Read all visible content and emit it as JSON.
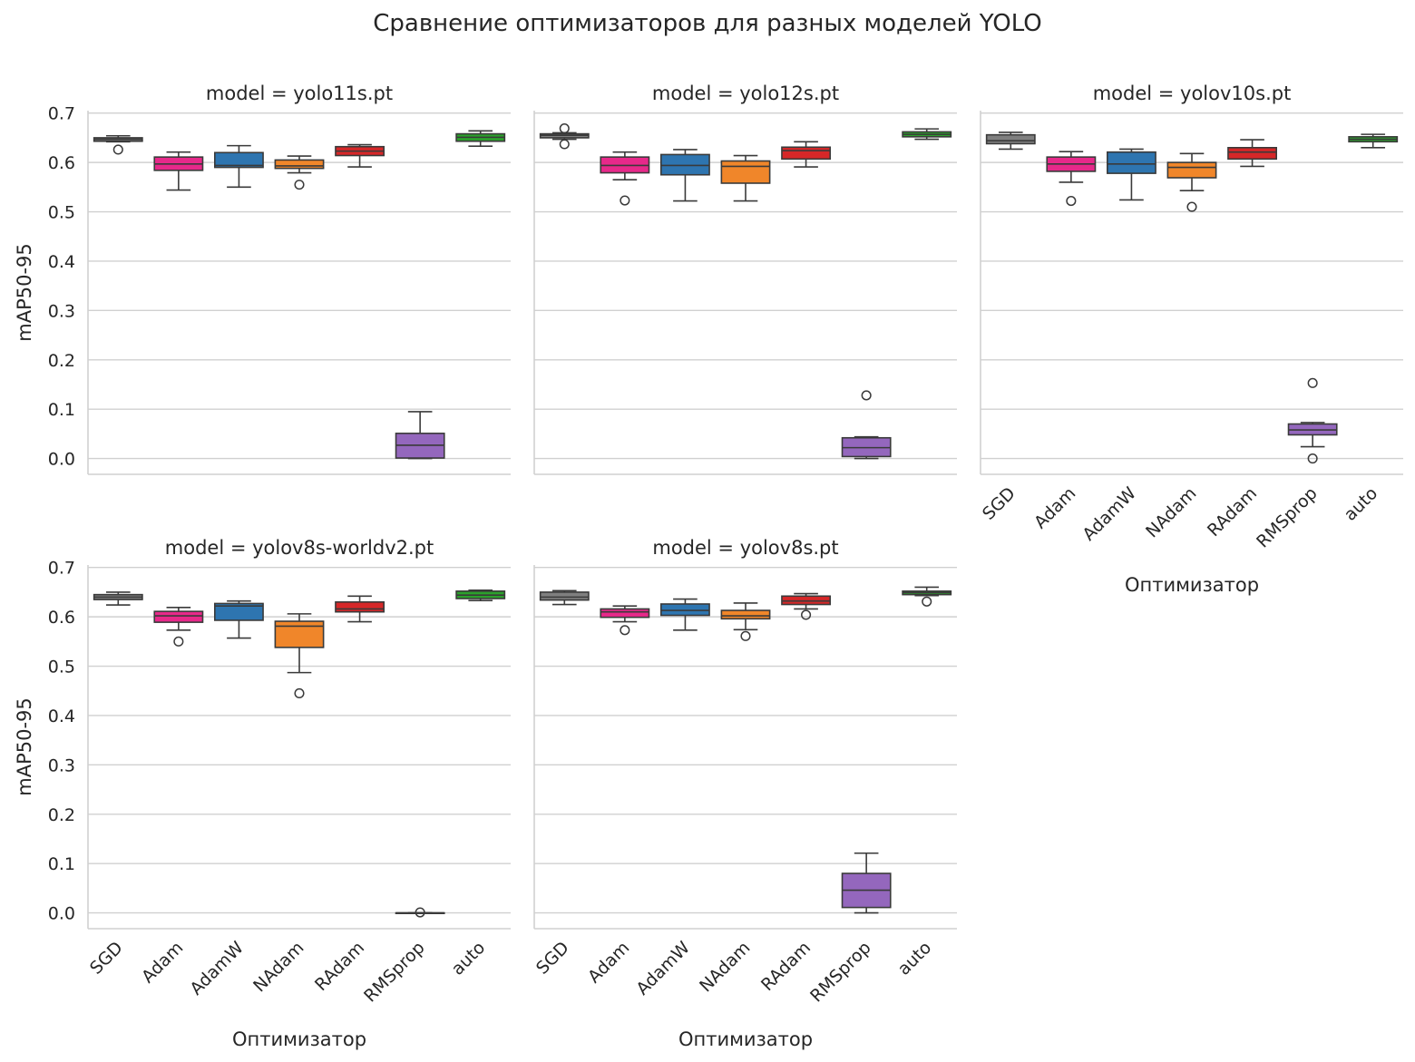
{
  "title": "Сравнение оптимизаторов для разных моделей YOLO",
  "colors": {
    "SGD": "#7f7f7f",
    "Adam": "#e7298a",
    "AdamW": "#2e75b0",
    "NAdam": "#f0862a",
    "RAdam": "#d62728",
    "RMSprop": "#9467bd",
    "auto": "#2ca02c",
    "grid": "#d0d0d0",
    "line": "#3a3a3a"
  },
  "chart_data": {
    "type": "box",
    "xlabel": "Оптимизатор",
    "ylabel": "mAP50-95",
    "ylim": [
      -0.032,
      0.705
    ],
    "yticks": [
      0.0,
      0.1,
      0.2,
      0.3,
      0.4,
      0.5,
      0.6,
      0.7
    ],
    "ytick_labels": [
      "0.0",
      "0.1",
      "0.2",
      "0.3",
      "0.4",
      "0.5",
      "0.6",
      "0.7"
    ],
    "categories": [
      "SGD",
      "Adam",
      "AdamW",
      "NAdam",
      "RAdam",
      "RMSprop",
      "auto"
    ],
    "grid": "horizontal",
    "panels": [
      {
        "title": "model = yolo11s.pt",
        "boxes": [
          {
            "optimizer": "SGD",
            "whislo": 0.642,
            "q1": 0.643,
            "med": 0.647,
            "q3": 0.65,
            "whishi": 0.654,
            "fliers": [
              0.626
            ]
          },
          {
            "optimizer": "Adam",
            "whislo": 0.544,
            "q1": 0.584,
            "med": 0.597,
            "q3": 0.611,
            "whishi": 0.621,
            "fliers": []
          },
          {
            "optimizer": "AdamW",
            "whislo": 0.55,
            "q1": 0.59,
            "med": 0.594,
            "q3": 0.62,
            "whishi": 0.634,
            "fliers": []
          },
          {
            "optimizer": "NAdam",
            "whislo": 0.579,
            "q1": 0.588,
            "med": 0.593,
            "q3": 0.605,
            "whishi": 0.613,
            "fliers": [
              0.555
            ]
          },
          {
            "optimizer": "RAdam",
            "whislo": 0.591,
            "q1": 0.614,
            "med": 0.623,
            "q3": 0.632,
            "whishi": 0.636,
            "fliers": []
          },
          {
            "optimizer": "RMSprop",
            "whislo": 0.0,
            "q1": 0.001,
            "med": 0.027,
            "q3": 0.051,
            "whishi": 0.095,
            "fliers": []
          },
          {
            "optimizer": "auto",
            "whislo": 0.633,
            "q1": 0.643,
            "med": 0.651,
            "q3": 0.658,
            "whishi": 0.664,
            "fliers": []
          }
        ]
      },
      {
        "title": "model = yolo12s.pt",
        "boxes": [
          {
            "optimizer": "SGD",
            "whislo": 0.647,
            "q1": 0.65,
            "med": 0.655,
            "q3": 0.658,
            "whishi": 0.66,
            "fliers": [
              0.669,
              0.637
            ]
          },
          {
            "optimizer": "Adam",
            "whislo": 0.565,
            "q1": 0.579,
            "med": 0.594,
            "q3": 0.611,
            "whishi": 0.621,
            "fliers": [
              0.523
            ]
          },
          {
            "optimizer": "AdamW",
            "whislo": 0.522,
            "q1": 0.575,
            "med": 0.594,
            "q3": 0.616,
            "whishi": 0.626,
            "fliers": []
          },
          {
            "optimizer": "NAdam",
            "whislo": 0.522,
            "q1": 0.558,
            "med": 0.592,
            "q3": 0.603,
            "whishi": 0.614,
            "fliers": []
          },
          {
            "optimizer": "RAdam",
            "whislo": 0.591,
            "q1": 0.607,
            "med": 0.624,
            "q3": 0.631,
            "whishi": 0.642,
            "fliers": []
          },
          {
            "optimizer": "RMSprop",
            "whislo": 0.0,
            "q1": 0.004,
            "med": 0.022,
            "q3": 0.042,
            "whishi": 0.044,
            "fliers": [
              0.128
            ]
          },
          {
            "optimizer": "auto",
            "whislo": 0.647,
            "q1": 0.652,
            "med": 0.657,
            "q3": 0.662,
            "whishi": 0.668,
            "fliers": []
          }
        ]
      },
      {
        "title": "model = yolov10s.pt",
        "boxes": [
          {
            "optimizer": "SGD",
            "whislo": 0.627,
            "q1": 0.638,
            "med": 0.644,
            "q3": 0.656,
            "whishi": 0.661,
            "fliers": []
          },
          {
            "optimizer": "Adam",
            "whislo": 0.56,
            "q1": 0.582,
            "med": 0.597,
            "q3": 0.611,
            "whishi": 0.622,
            "fliers": [
              0.522
            ]
          },
          {
            "optimizer": "AdamW",
            "whislo": 0.524,
            "q1": 0.578,
            "med": 0.597,
            "q3": 0.621,
            "whishi": 0.627,
            "fliers": []
          },
          {
            "optimizer": "NAdam",
            "whislo": 0.543,
            "q1": 0.569,
            "med": 0.59,
            "q3": 0.6,
            "whishi": 0.618,
            "fliers": [
              0.51
            ]
          },
          {
            "optimizer": "RAdam",
            "whislo": 0.592,
            "q1": 0.607,
            "med": 0.621,
            "q3": 0.63,
            "whishi": 0.646,
            "fliers": []
          },
          {
            "optimizer": "RMSprop",
            "whislo": 0.024,
            "q1": 0.048,
            "med": 0.058,
            "q3": 0.07,
            "whishi": 0.073,
            "fliers": [
              0.153,
              0.0
            ]
          },
          {
            "optimizer": "auto",
            "whislo": 0.63,
            "q1": 0.642,
            "med": 0.647,
            "q3": 0.652,
            "whishi": 0.657,
            "fliers": []
          }
        ]
      },
      {
        "title": "model = yolov8s-worldv2.pt",
        "boxes": [
          {
            "optimizer": "SGD",
            "whislo": 0.624,
            "q1": 0.635,
            "med": 0.64,
            "q3": 0.645,
            "whishi": 0.65,
            "fliers": []
          },
          {
            "optimizer": "Adam",
            "whislo": 0.573,
            "q1": 0.589,
            "med": 0.602,
            "q3": 0.611,
            "whishi": 0.619,
            "fliers": [
              0.55
            ]
          },
          {
            "optimizer": "AdamW",
            "whislo": 0.557,
            "q1": 0.593,
            "med": 0.622,
            "q3": 0.627,
            "whishi": 0.632,
            "fliers": []
          },
          {
            "optimizer": "NAdam",
            "whislo": 0.487,
            "q1": 0.538,
            "med": 0.581,
            "q3": 0.591,
            "whishi": 0.606,
            "fliers": [
              0.445
            ]
          },
          {
            "optimizer": "RAdam",
            "whislo": 0.59,
            "q1": 0.61,
            "med": 0.616,
            "q3": 0.63,
            "whishi": 0.642,
            "fliers": []
          },
          {
            "optimizer": "RMSprop",
            "whislo": 0.0,
            "q1": 0.0,
            "med": 0.0,
            "q3": 0.0,
            "whishi": 0.0,
            "fliers": [
              0.001
            ]
          },
          {
            "optimizer": "auto",
            "whislo": 0.633,
            "q1": 0.637,
            "med": 0.644,
            "q3": 0.652,
            "whishi": 0.654,
            "fliers": []
          }
        ]
      },
      {
        "title": "model = yolov8s.pt",
        "boxes": [
          {
            "optimizer": "SGD",
            "whislo": 0.625,
            "q1": 0.634,
            "med": 0.64,
            "q3": 0.65,
            "whishi": 0.653,
            "fliers": []
          },
          {
            "optimizer": "Adam",
            "whislo": 0.59,
            "q1": 0.599,
            "med": 0.61,
            "q3": 0.616,
            "whishi": 0.622,
            "fliers": [
              0.573
            ]
          },
          {
            "optimizer": "AdamW",
            "whislo": 0.573,
            "q1": 0.603,
            "med": 0.613,
            "q3": 0.626,
            "whishi": 0.636,
            "fliers": []
          },
          {
            "optimizer": "NAdam",
            "whislo": 0.574,
            "q1": 0.596,
            "med": 0.602,
            "q3": 0.613,
            "whishi": 0.628,
            "fliers": [
              0.561
            ]
          },
          {
            "optimizer": "RAdam",
            "whislo": 0.616,
            "q1": 0.625,
            "med": 0.632,
            "q3": 0.642,
            "whishi": 0.647,
            "fliers": [
              0.604
            ]
          },
          {
            "optimizer": "RMSprop",
            "whislo": 0.0,
            "q1": 0.011,
            "med": 0.046,
            "q3": 0.08,
            "whishi": 0.121,
            "fliers": []
          },
          {
            "optimizer": "auto",
            "whislo": 0.643,
            "q1": 0.645,
            "med": 0.649,
            "q3": 0.652,
            "whishi": 0.66,
            "fliers": [
              0.631
            ]
          }
        ]
      }
    ]
  }
}
